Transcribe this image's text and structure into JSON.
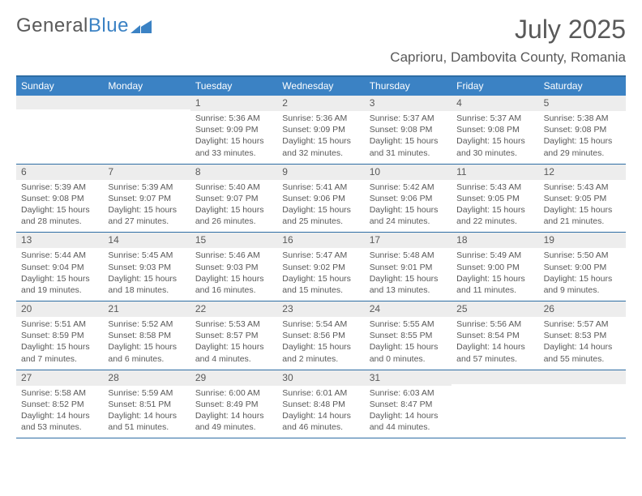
{
  "logo": {
    "text1": "General",
    "text2": "Blue"
  },
  "title": "July 2025",
  "location": "Caprioru, Dambovita County, Romania",
  "colors": {
    "header_bg": "#3b82c4",
    "border": "#2e6da4",
    "daynum_bg": "#ededed",
    "text": "#595959",
    "page_bg": "#ffffff"
  },
  "day_names": [
    "Sunday",
    "Monday",
    "Tuesday",
    "Wednesday",
    "Thursday",
    "Friday",
    "Saturday"
  ],
  "weeks": [
    [
      {
        "n": "",
        "sr": "",
        "ss": "",
        "dl": ""
      },
      {
        "n": "",
        "sr": "",
        "ss": "",
        "dl": ""
      },
      {
        "n": "1",
        "sr": "Sunrise: 5:36 AM",
        "ss": "Sunset: 9:09 PM",
        "dl": "Daylight: 15 hours and 33 minutes."
      },
      {
        "n": "2",
        "sr": "Sunrise: 5:36 AM",
        "ss": "Sunset: 9:09 PM",
        "dl": "Daylight: 15 hours and 32 minutes."
      },
      {
        "n": "3",
        "sr": "Sunrise: 5:37 AM",
        "ss": "Sunset: 9:08 PM",
        "dl": "Daylight: 15 hours and 31 minutes."
      },
      {
        "n": "4",
        "sr": "Sunrise: 5:37 AM",
        "ss": "Sunset: 9:08 PM",
        "dl": "Daylight: 15 hours and 30 minutes."
      },
      {
        "n": "5",
        "sr": "Sunrise: 5:38 AM",
        "ss": "Sunset: 9:08 PM",
        "dl": "Daylight: 15 hours and 29 minutes."
      }
    ],
    [
      {
        "n": "6",
        "sr": "Sunrise: 5:39 AM",
        "ss": "Sunset: 9:08 PM",
        "dl": "Daylight: 15 hours and 28 minutes."
      },
      {
        "n": "7",
        "sr": "Sunrise: 5:39 AM",
        "ss": "Sunset: 9:07 PM",
        "dl": "Daylight: 15 hours and 27 minutes."
      },
      {
        "n": "8",
        "sr": "Sunrise: 5:40 AM",
        "ss": "Sunset: 9:07 PM",
        "dl": "Daylight: 15 hours and 26 minutes."
      },
      {
        "n": "9",
        "sr": "Sunrise: 5:41 AM",
        "ss": "Sunset: 9:06 PM",
        "dl": "Daylight: 15 hours and 25 minutes."
      },
      {
        "n": "10",
        "sr": "Sunrise: 5:42 AM",
        "ss": "Sunset: 9:06 PM",
        "dl": "Daylight: 15 hours and 24 minutes."
      },
      {
        "n": "11",
        "sr": "Sunrise: 5:43 AM",
        "ss": "Sunset: 9:05 PM",
        "dl": "Daylight: 15 hours and 22 minutes."
      },
      {
        "n": "12",
        "sr": "Sunrise: 5:43 AM",
        "ss": "Sunset: 9:05 PM",
        "dl": "Daylight: 15 hours and 21 minutes."
      }
    ],
    [
      {
        "n": "13",
        "sr": "Sunrise: 5:44 AM",
        "ss": "Sunset: 9:04 PM",
        "dl": "Daylight: 15 hours and 19 minutes."
      },
      {
        "n": "14",
        "sr": "Sunrise: 5:45 AM",
        "ss": "Sunset: 9:03 PM",
        "dl": "Daylight: 15 hours and 18 minutes."
      },
      {
        "n": "15",
        "sr": "Sunrise: 5:46 AM",
        "ss": "Sunset: 9:03 PM",
        "dl": "Daylight: 15 hours and 16 minutes."
      },
      {
        "n": "16",
        "sr": "Sunrise: 5:47 AM",
        "ss": "Sunset: 9:02 PM",
        "dl": "Daylight: 15 hours and 15 minutes."
      },
      {
        "n": "17",
        "sr": "Sunrise: 5:48 AM",
        "ss": "Sunset: 9:01 PM",
        "dl": "Daylight: 15 hours and 13 minutes."
      },
      {
        "n": "18",
        "sr": "Sunrise: 5:49 AM",
        "ss": "Sunset: 9:00 PM",
        "dl": "Daylight: 15 hours and 11 minutes."
      },
      {
        "n": "19",
        "sr": "Sunrise: 5:50 AM",
        "ss": "Sunset: 9:00 PM",
        "dl": "Daylight: 15 hours and 9 minutes."
      }
    ],
    [
      {
        "n": "20",
        "sr": "Sunrise: 5:51 AM",
        "ss": "Sunset: 8:59 PM",
        "dl": "Daylight: 15 hours and 7 minutes."
      },
      {
        "n": "21",
        "sr": "Sunrise: 5:52 AM",
        "ss": "Sunset: 8:58 PM",
        "dl": "Daylight: 15 hours and 6 minutes."
      },
      {
        "n": "22",
        "sr": "Sunrise: 5:53 AM",
        "ss": "Sunset: 8:57 PM",
        "dl": "Daylight: 15 hours and 4 minutes."
      },
      {
        "n": "23",
        "sr": "Sunrise: 5:54 AM",
        "ss": "Sunset: 8:56 PM",
        "dl": "Daylight: 15 hours and 2 minutes."
      },
      {
        "n": "24",
        "sr": "Sunrise: 5:55 AM",
        "ss": "Sunset: 8:55 PM",
        "dl": "Daylight: 15 hours and 0 minutes."
      },
      {
        "n": "25",
        "sr": "Sunrise: 5:56 AM",
        "ss": "Sunset: 8:54 PM",
        "dl": "Daylight: 14 hours and 57 minutes."
      },
      {
        "n": "26",
        "sr": "Sunrise: 5:57 AM",
        "ss": "Sunset: 8:53 PM",
        "dl": "Daylight: 14 hours and 55 minutes."
      }
    ],
    [
      {
        "n": "27",
        "sr": "Sunrise: 5:58 AM",
        "ss": "Sunset: 8:52 PM",
        "dl": "Daylight: 14 hours and 53 minutes."
      },
      {
        "n": "28",
        "sr": "Sunrise: 5:59 AM",
        "ss": "Sunset: 8:51 PM",
        "dl": "Daylight: 14 hours and 51 minutes."
      },
      {
        "n": "29",
        "sr": "Sunrise: 6:00 AM",
        "ss": "Sunset: 8:49 PM",
        "dl": "Daylight: 14 hours and 49 minutes."
      },
      {
        "n": "30",
        "sr": "Sunrise: 6:01 AM",
        "ss": "Sunset: 8:48 PM",
        "dl": "Daylight: 14 hours and 46 minutes."
      },
      {
        "n": "31",
        "sr": "Sunrise: 6:03 AM",
        "ss": "Sunset: 8:47 PM",
        "dl": "Daylight: 14 hours and 44 minutes."
      },
      {
        "n": "",
        "sr": "",
        "ss": "",
        "dl": ""
      },
      {
        "n": "",
        "sr": "",
        "ss": "",
        "dl": ""
      }
    ]
  ]
}
